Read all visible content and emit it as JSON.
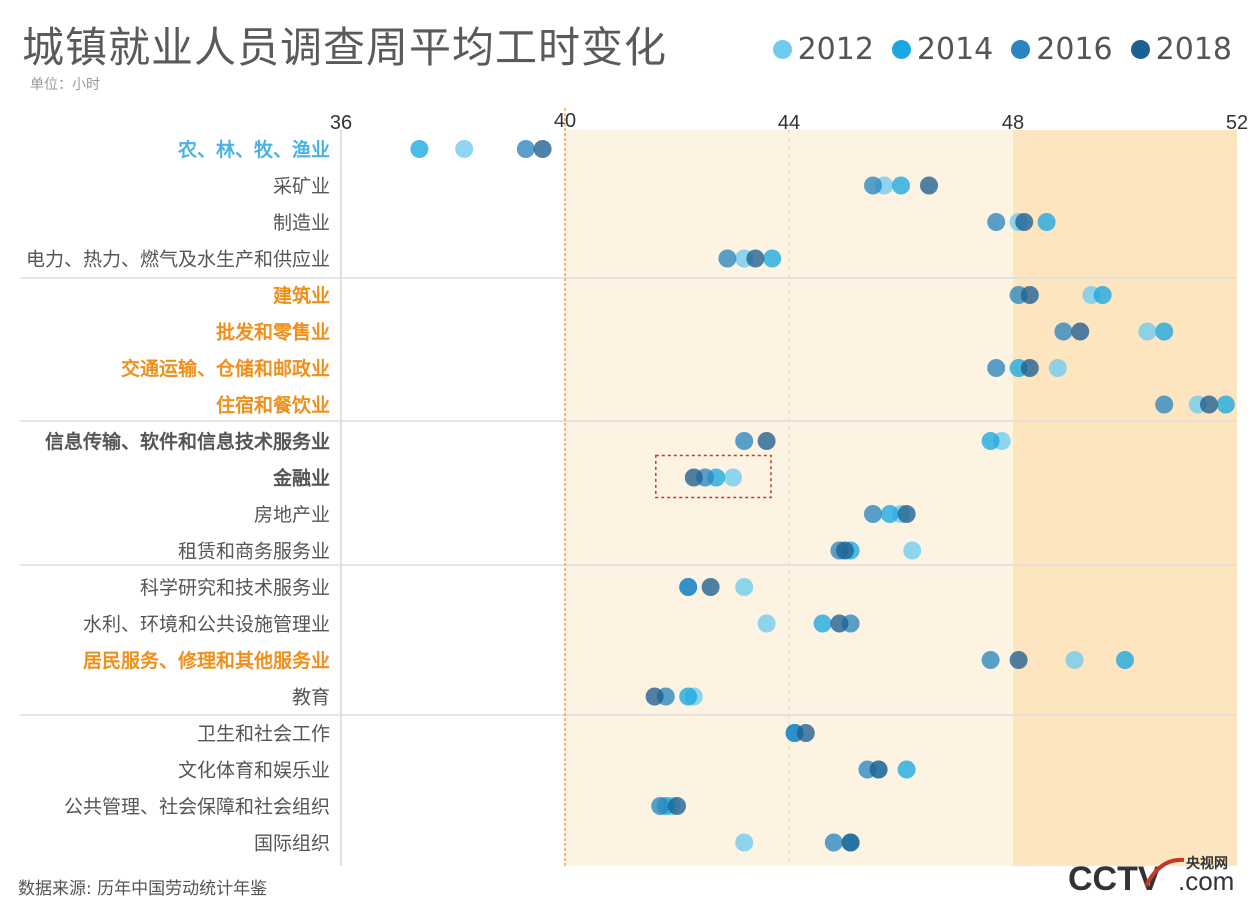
{
  "title": "城镇就业人员调查周平均工时变化",
  "unit": "单位：小时",
  "source": "数据来源: 历年中国劳动统计年鉴",
  "logo": {
    "main": "CCTV",
    "sub": ".com",
    "cn": "央视网"
  },
  "colors": {
    "c2012": "#6ecbee",
    "c2014": "#1ba8e0",
    "c2016": "#2a85bf",
    "c2018": "#1e5f91",
    "highlight_blue": "#4bb3e3",
    "highlight_orange": "#f0901c",
    "line40": "#f0901c",
    "band1": "#fdf3e3",
    "band2": "#fde5bf",
    "box": "#c0392b"
  },
  "chart_data": {
    "type": "scatter",
    "title": "城镇就业人员调查周平均工时变化",
    "xlabel": "",
    "ylabel": "",
    "xlim": [
      36,
      52
    ],
    "xticks": [
      36,
      40,
      44,
      48,
      52
    ],
    "reference_line": 40,
    "series": [
      {
        "name": "2012",
        "color": "#6ecbee"
      },
      {
        "name": "2014",
        "color": "#1ba8e0"
      },
      {
        "name": "2016",
        "color": "#2a85bf"
      },
      {
        "name": "2018",
        "color": "#1e5f91"
      }
    ],
    "groups": [
      [
        0,
        1,
        2,
        3
      ],
      [
        4,
        5,
        6,
        7
      ],
      [
        8,
        9,
        10,
        11
      ],
      [
        12,
        13,
        14,
        15
      ],
      [
        16,
        17,
        18,
        19
      ]
    ],
    "categories": [
      {
        "name": "农、林、牧、渔业",
        "style": "blue",
        "values": [
          38.2,
          37.4,
          39.3,
          39.6
        ]
      },
      {
        "name": "采矿业",
        "style": "normal",
        "values": [
          45.7,
          46.0,
          45.5,
          46.5
        ]
      },
      {
        "name": "制造业",
        "style": "normal",
        "values": [
          48.1,
          48.6,
          47.7,
          48.2
        ]
      },
      {
        "name": "电力、热力、燃气及水生产和供应业",
        "style": "normal",
        "values": [
          43.2,
          43.7,
          42.9,
          43.4
        ]
      },
      {
        "name": "建筑业",
        "style": "orange",
        "values": [
          49.4,
          49.6,
          48.1,
          48.3
        ]
      },
      {
        "name": "批发和零售业",
        "style": "orange",
        "values": [
          50.4,
          50.7,
          48.9,
          49.2
        ]
      },
      {
        "name": "交通运输、仓储和邮政业",
        "style": "orange",
        "values": [
          48.8,
          48.1,
          47.7,
          48.3
        ]
      },
      {
        "name": "住宿和餐饮业",
        "style": "orange",
        "values": [
          51.3,
          51.8,
          50.7,
          51.5
        ]
      },
      {
        "name": "信息传输、软件和信息技术服务业",
        "style": "bold",
        "values": [
          47.8,
          47.6,
          43.2,
          43.6
        ]
      },
      {
        "name": "金融业",
        "style": "bold",
        "values": [
          43.0,
          42.7,
          42.5,
          42.3
        ]
      },
      {
        "name": "房地产业",
        "style": "normal",
        "values": [
          46.0,
          45.8,
          45.5,
          46.1
        ]
      },
      {
        "name": "租赁和商务服务业",
        "style": "normal",
        "values": [
          46.2,
          45.1,
          44.9,
          45.0
        ]
      },
      {
        "name": "科学研究和技术服务业",
        "style": "normal",
        "values": [
          43.2,
          42.2,
          42.2,
          42.6
        ]
      },
      {
        "name": "水利、环境和公共设施管理业",
        "style": "normal",
        "values": [
          43.6,
          44.6,
          45.1,
          44.9
        ]
      },
      {
        "name": "居民服务、修理和其他服务业",
        "style": "orange",
        "values": [
          49.1,
          50.0,
          47.6,
          48.1
        ]
      },
      {
        "name": "教育",
        "style": "normal",
        "values": [
          42.3,
          42.2,
          41.8,
          41.6
        ]
      },
      {
        "name": "卫生和社会工作",
        "style": "normal",
        "values": [
          44.1,
          44.1,
          44.1,
          44.3
        ]
      },
      {
        "name": "文化体育和娱乐业",
        "style": "normal",
        "values": [
          45.6,
          46.1,
          45.4,
          45.6
        ]
      },
      {
        "name": "公共管理、社会保障和社会组织",
        "style": "normal",
        "values": [
          41.9,
          41.8,
          41.7,
          42.0
        ]
      },
      {
        "name": "国际组织",
        "style": "normal",
        "values": [
          43.2,
          45.1,
          44.8,
          45.1
        ]
      }
    ]
  }
}
